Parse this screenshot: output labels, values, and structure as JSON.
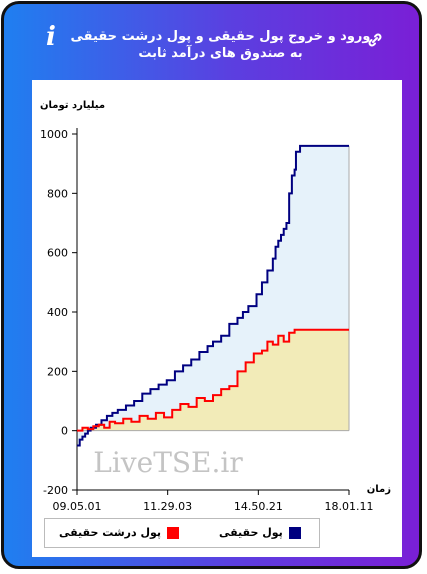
{
  "header": {
    "title": "ورود و خروج پول حقیقی و پول درشت حقیقی به صندوق های درآمد ثابت",
    "info_icon": "info-icon",
    "link_icon": "link-icon"
  },
  "watermark": "LiveTSE.ir",
  "colors": {
    "series1": "#000080",
    "series2": "#ff0000",
    "fill1": "#e6f2fa",
    "fill2": "#f2ebb8"
  },
  "chart_data": {
    "type": "area",
    "ylabel": "میلیارد تومان",
    "xlabel": "زمان",
    "ylim": [
      -200,
      1000
    ],
    "yticks": [
      -200,
      0,
      200,
      400,
      600,
      800,
      1000
    ],
    "xticks": [
      "09.05.01",
      "11.29.03",
      "14.50.21",
      "18.01.11"
    ],
    "grid": false,
    "legend_position": "bottom",
    "series": [
      {
        "name": "پول حقیقی",
        "x": [
          0,
          0.01,
          0.02,
          0.03,
          0.04,
          0.05,
          0.07,
          0.09,
          0.11,
          0.13,
          0.15,
          0.18,
          0.21,
          0.24,
          0.27,
          0.3,
          0.33,
          0.36,
          0.39,
          0.42,
          0.45,
          0.48,
          0.5,
          0.53,
          0.56,
          0.59,
          0.61,
          0.63,
          0.66,
          0.68,
          0.7,
          0.72,
          0.73,
          0.74,
          0.75,
          0.76,
          0.77,
          0.78,
          0.79,
          0.8,
          0.805,
          0.82,
          0.83,
          1.0
        ],
        "values": [
          -50,
          -30,
          -20,
          -10,
          0,
          10,
          20,
          35,
          50,
          60,
          70,
          85,
          100,
          125,
          140,
          155,
          170,
          200,
          220,
          240,
          265,
          285,
          300,
          320,
          360,
          380,
          400,
          420,
          460,
          500,
          540,
          580,
          620,
          640,
          660,
          680,
          700,
          800,
          860,
          880,
          940,
          960,
          960,
          960
        ]
      },
      {
        "name": "پول درشت حقیقی",
        "x": [
          0,
          0.02,
          0.04,
          0.06,
          0.08,
          0.1,
          0.12,
          0.14,
          0.17,
          0.2,
          0.23,
          0.26,
          0.29,
          0.32,
          0.35,
          0.38,
          0.41,
          0.44,
          0.47,
          0.5,
          0.53,
          0.56,
          0.59,
          0.62,
          0.65,
          0.68,
          0.7,
          0.72,
          0.74,
          0.76,
          0.78,
          0.8,
          0.82,
          0.84,
          1.0
        ],
        "values": [
          0,
          10,
          5,
          15,
          20,
          10,
          30,
          25,
          40,
          30,
          50,
          40,
          60,
          45,
          70,
          90,
          80,
          110,
          100,
          120,
          140,
          150,
          200,
          230,
          260,
          270,
          300,
          290,
          320,
          300,
          330,
          340,
          340,
          340,
          340
        ]
      }
    ]
  }
}
